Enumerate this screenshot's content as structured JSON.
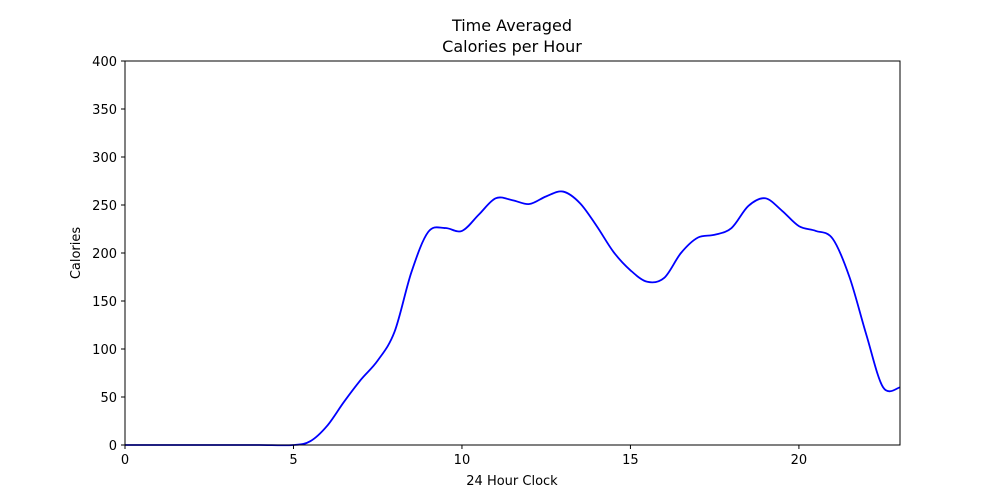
{
  "chart_data": {
    "type": "line",
    "title_line1": "Time Averaged",
    "title_line2": "Calories per Hour",
    "xlabel": "24 Hour Clock",
    "ylabel": "Calories",
    "xlim": [
      0,
      23
    ],
    "ylim": [
      0,
      400
    ],
    "x_ticks": [
      0,
      5,
      10,
      15,
      20
    ],
    "x_tick_labels": [
      "0",
      "5",
      "10",
      "15",
      "20"
    ],
    "y_ticks": [
      0,
      50,
      100,
      150,
      200,
      250,
      300,
      350,
      400
    ],
    "y_tick_labels": [
      "0",
      "50",
      "100",
      "150",
      "200",
      "250",
      "300",
      "350",
      "400"
    ],
    "grid": false,
    "series": [
      {
        "color": "#0000ff",
        "x": [
          0,
          1,
          2,
          3,
          4,
          5,
          5.5,
          6,
          6.5,
          7,
          7.5,
          8,
          8.5,
          9,
          9.5,
          10,
          10.5,
          11,
          11.5,
          12,
          12.5,
          13,
          13.5,
          14,
          14.5,
          15,
          15.5,
          16,
          16.5,
          17,
          17.5,
          18,
          18.5,
          19,
          19.5,
          20,
          20.5,
          21,
          21.5,
          22,
          22.5,
          23
        ],
        "y": [
          0,
          0,
          0,
          0,
          0,
          0,
          4,
          20,
          45,
          68,
          88,
          118,
          180,
          222,
          226,
          223,
          240,
          257,
          255,
          251,
          259,
          264,
          252,
          228,
          201,
          182,
          170,
          174,
          200,
          216,
          219,
          226,
          249,
          257,
          244,
          228,
          223,
          215,
          175,
          115,
          60,
          60
        ]
      }
    ]
  }
}
